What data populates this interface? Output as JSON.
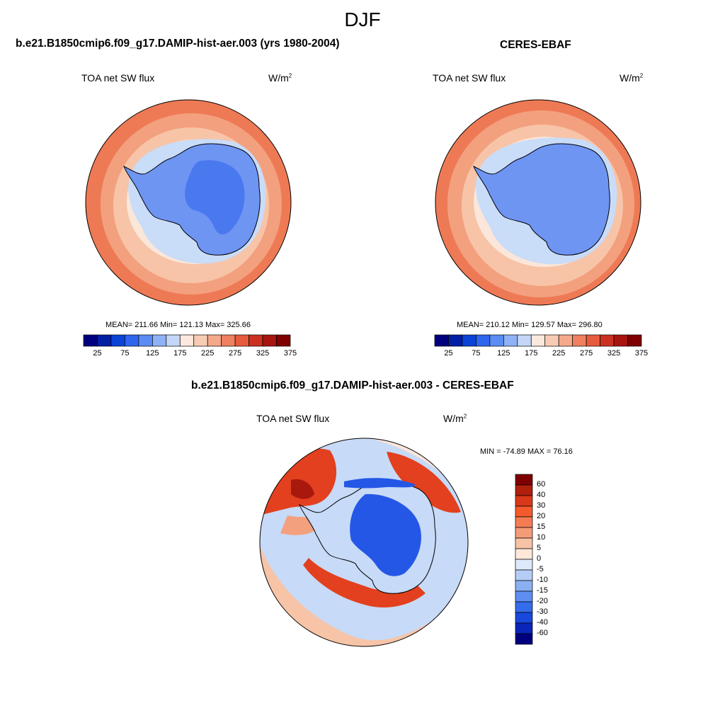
{
  "title": "DJF",
  "panels": {
    "model": {
      "title": "b.e21.B1850cmip6.f09_g17.DAMIP-hist-aer.003 (yrs 1980-2004)",
      "left_label": "TOA net SW flux",
      "unit_base": "W/m",
      "unit_sup": "2",
      "stats": "MEAN= 211.66  Min= 121.13  Max= 325.66"
    },
    "obs": {
      "title": "CERES-EBAF",
      "left_label": "TOA net SW flux",
      "unit_base": "W/m",
      "unit_sup": "2",
      "stats": "MEAN= 210.12  Min= 129.57  Max= 296.80"
    },
    "diff": {
      "title": "b.e21.B1850cmip6.f09_g17.DAMIP-hist-aer.003 - CERES-EBAF",
      "left_label": "TOA net SW flux",
      "unit_base": "W/m",
      "unit_sup": "2",
      "stats": "MIN = -74.89 MAX =  76.16"
    }
  },
  "colorbar_abs": {
    "ticks": [
      "25",
      "75",
      "125",
      "175",
      "225",
      "275",
      "325",
      "375"
    ],
    "colors": [
      "#00007f",
      "#001fa3",
      "#0b43d6",
      "#2f66ee",
      "#5b8cf3",
      "#8eb2f5",
      "#c3d6f7",
      "#fce9dd",
      "#f8cbb3",
      "#f4a98a",
      "#ef8060",
      "#e65b3b",
      "#cc3020",
      "#a81510",
      "#7f0000"
    ]
  },
  "colorbar_diff": {
    "ticks": [
      "60",
      "40",
      "30",
      "20",
      "15",
      "10",
      "5",
      "0",
      "-5",
      "-10",
      "-15",
      "-20",
      "-30",
      "-40",
      "-60"
    ],
    "colors": [
      "#7f0000",
      "#b0200d",
      "#d9381a",
      "#f55a2c",
      "#f47c55",
      "#f49b78",
      "#f7c2a5",
      "#fde8d9",
      "#dde9fb",
      "#b5cdf6",
      "#8bb0f2",
      "#5e8ef0",
      "#356cec",
      "#1a48dd",
      "#0a25b8",
      "#00007f"
    ]
  },
  "map_colors": {
    "land_low": "#4a78ee",
    "land_mid": "#6f95f3",
    "ice_edge": "#c9dcf8",
    "ocean_pale": "#fbe6da",
    "ocean_light": "#f7c4a8",
    "ocean_mid": "#f3a07f",
    "ocean_high": "#ee7a55",
    "diff_red": "#e2401e",
    "diff_dark_red": "#a9180d",
    "diff_blue": "#2457e6",
    "diff_pale_blue": "#c7daf7"
  }
}
